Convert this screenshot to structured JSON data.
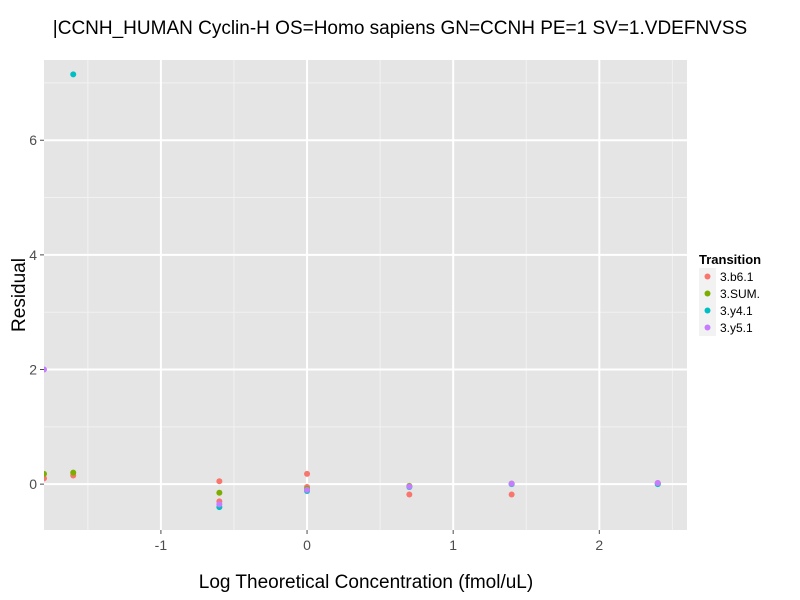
{
  "chart_data": {
    "type": "scatter",
    "title": "|CCNH_HUMAN Cyclin-H OS=Homo sapiens GN=CCNH PE=1 SV=1.VDEFNVSS",
    "xlabel": "Log Theoretical Concentration (fmol/uL)",
    "ylabel": "Residual",
    "xlim": [
      -1.8,
      2.6
    ],
    "ylim": [
      -0.8,
      7.4
    ],
    "x_ticks": [
      -1,
      0,
      1,
      2
    ],
    "y_ticks": [
      0,
      2,
      4,
      6
    ],
    "x_tick_labels": [
      "-1",
      "0",
      "1",
      "2"
    ],
    "y_tick_labels": [
      "0",
      "2",
      "4",
      "6"
    ],
    "grid": true,
    "background": "#e5e5e5",
    "legend": {
      "title": "Transition",
      "placement": "right"
    },
    "series": [
      {
        "name": "3.b6.1",
        "color": "#f8766d",
        "points": [
          [
            -1.8,
            0.1
          ],
          [
            -1.6,
            0.15
          ],
          [
            -0.6,
            0.05
          ],
          [
            -0.6,
            -0.3
          ],
          [
            0.0,
            0.18
          ],
          [
            0.0,
            -0.05
          ],
          [
            0.7,
            -0.18
          ],
          [
            1.4,
            -0.18
          ],
          [
            2.4,
            0.02
          ]
        ]
      },
      {
        "name": "3.SUM.",
        "color": "#7cae00",
        "points": [
          [
            -1.8,
            0.18
          ],
          [
            -1.6,
            0.2
          ],
          [
            -0.6,
            -0.15
          ],
          [
            0.0,
            -0.08
          ],
          [
            0.7,
            -0.03
          ],
          [
            1.4,
            0.01
          ],
          [
            2.4,
            0.01
          ]
        ]
      },
      {
        "name": "3.y4.1",
        "color": "#00bfc4",
        "points": [
          [
            -1.6,
            7.15
          ],
          [
            -0.6,
            -0.4
          ],
          [
            0.0,
            -0.12
          ],
          [
            0.7,
            -0.05
          ],
          [
            1.4,
            0.0
          ],
          [
            2.4,
            0.0
          ]
        ]
      },
      {
        "name": "3.y5.1",
        "color": "#c77cff",
        "points": [
          [
            -1.8,
            2.0
          ],
          [
            -0.6,
            -0.35
          ],
          [
            0.0,
            -0.1
          ],
          [
            0.7,
            -0.04
          ],
          [
            1.4,
            0.01
          ],
          [
            2.4,
            0.02
          ]
        ]
      }
    ]
  }
}
